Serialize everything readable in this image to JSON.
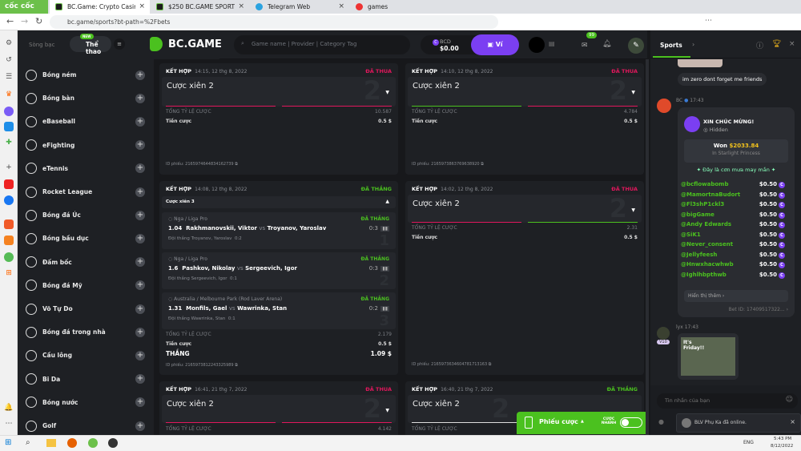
{
  "browser": {
    "brand": "cốc cốc",
    "tabs": [
      {
        "title": "BC.Game: Crypto Casino Gan"
      },
      {
        "title": "$250 BC.GAME SPORTS PARL"
      },
      {
        "title": "Telegram Web"
      },
      {
        "title": "games"
      }
    ],
    "url": "bc.game/sports?bt-path=%2Fbets"
  },
  "header": {
    "casino": "Sòng bạc",
    "sports": "Thể thao",
    "new_badge": "NEW",
    "logo": "BC.GAME",
    "search_placeholder": "Game name | Provider | Category Tag",
    "currency": "BCD",
    "balance": "$0.00",
    "wallet": "Ví",
    "mail_count": "99"
  },
  "sidebar": {
    "items": [
      "Bóng ném",
      "Bóng bàn",
      "eBaseball",
      "eFighting",
      "eTennis",
      "Rocket League",
      "Bóng đá Úc",
      "Bóng bầu dục",
      "Đấm bốc",
      "Bóng đá Mỹ",
      "Võ Tự Do",
      "Bóng đá trong nhà",
      "Cầu lông",
      "Bi Da",
      "Bóng nước",
      "Golf"
    ]
  },
  "labels": {
    "combo": "KẾT HỢP",
    "total_odds": "TỔNG TỶ LỆ CƯỢC",
    "stake": "Tiền cược",
    "win": "THẮNG",
    "id_prefix": "ID phiếu:",
    "vs": "vs",
    "lost": "ĐÃ THUA",
    "won": "ĐÃ THẮNG"
  },
  "bets": [
    {
      "date": "14:15, 12 thg 8, 2022",
      "status": "ĐÃ THUA",
      "title": "Cược xiên 2",
      "count": "2",
      "odds": "10.587",
      "stake": "0.5 $",
      "id": "2165974644834162739"
    },
    {
      "date": "14:10, 12 thg 8, 2022",
      "status": "ĐÃ THUA",
      "title": "Cược xiên 2",
      "count": "2",
      "odds": "4.784",
      "stake": "0.5 $",
      "id": "2165973863769638920"
    },
    {
      "date": "14:08, 12 thg 8, 2022",
      "status": "ĐÃ THẮNG",
      "title": "Cược xiên 3",
      "odds": "2.179",
      "stake": "0.5 $",
      "payout": "1.09 $",
      "id": "2165973812243325989",
      "legs": [
        {
          "league": "Nga / Liga Pro",
          "status": "ĐÃ THẮNG",
          "odds": "1.04",
          "home": "Rakhmanovskii, Viktor",
          "away": "Troyanov, Yaroslav",
          "result": "Đội thắng Troyanov, Yaroslav",
          "line": "0:2",
          "score": "0:3",
          "num": "1"
        },
        {
          "league": "Nga / Liga Pro",
          "status": "ĐÃ THẮNG",
          "odds": "1.6",
          "home": "Pashkov, Nikolay",
          "away": "Sergeevich, Igor",
          "result": "Đội thắng Sergeevich, Igor",
          "line": "0:1",
          "score": "0:3",
          "num": "2"
        },
        {
          "league": "Australia / Melbourne Park (Rod Laver Arena)",
          "status": "ĐÃ THẮNG",
          "odds": "1.31",
          "home": "Monfils, Gael",
          "away": "Wawrinka, Stan",
          "result": "Đội thắng Wawrinka, Stan",
          "line": "0:1",
          "score": "0:2",
          "num": "3"
        }
      ]
    },
    {
      "date": "14:02, 12 thg 8, 2022",
      "status": "ĐÃ THUA",
      "title": "Cược xiên 2",
      "count": "2",
      "odds": "2.31",
      "stake": "0.5 $",
      "id": "2165973634604781713163"
    },
    {
      "date": "16:41, 21 thg 7, 2022",
      "status": "ĐÃ THUA",
      "title": "Cược xiên 2",
      "count": "2",
      "odds": "4.142"
    },
    {
      "date": "16:40, 21 thg 7, 2022",
      "status": "ĐÃ THẮNG",
      "title": "Cược xiên 2",
      "count": "2"
    }
  ],
  "betslip": {
    "label": "Phiếu cược",
    "quick": "CƯỢC NHANH"
  },
  "chat": {
    "tab": "Sports",
    "msg1": "im zero dont forget me friends",
    "bc_name": "BC",
    "bc_time": "17:43",
    "congrats": "XIN CHÚC MỪNG!",
    "hidden": "Hidden",
    "won_label": "Won",
    "won_amount": "$2033.84",
    "game": "In Starlight Princess",
    "rain": "Đây là cơn mưa may mắn",
    "rain_users": [
      {
        "u": "@bcflowabomb",
        "a": "$0.50"
      },
      {
        "u": "@MamortnaBudort",
        "a": "$0.50"
      },
      {
        "u": "@Fl3shP1ckl3",
        "a": "$0.50"
      },
      {
        "u": "@bigGame",
        "a": "$0.50"
      },
      {
        "u": "@Andy Edwards",
        "a": "$0.50"
      },
      {
        "u": "@SiK1",
        "a": "$0.50"
      },
      {
        "u": "@Never_consent",
        "a": "$0.50"
      },
      {
        "u": "@Jellyfeesh",
        "a": "$0.50"
      },
      {
        "u": "@Hnwxhacwhwb",
        "a": "$0.50"
      },
      {
        "u": "@Ighlhbpthwb",
        "a": "$0.50"
      }
    ],
    "show_more": "Hiển thị thêm",
    "bet_id": "Bet ID: 17409517322...",
    "user2": "lyx",
    "time2": "17:43",
    "vip": "V10",
    "gif_text": "It's Friday!!",
    "input_placeholder": "Tin nhắn của bạn",
    "toast": "BLV Phụ Ka đã online."
  },
  "taskbar": {
    "lang": "ENG",
    "time": "5:43 PM",
    "date": "8/12/2022"
  },
  "colors": {
    "lost": "#e0175c",
    "won": "#4bc11f",
    "accent": "#7b3ff2",
    "bg": "#17181b",
    "panel": "#1e2024"
  }
}
